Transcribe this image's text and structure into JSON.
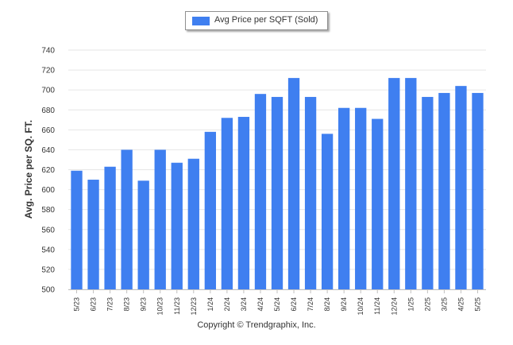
{
  "colors": {
    "bar": "#3f7ff0",
    "grid": "#e6e6e6",
    "axis": "#c0c0c0",
    "text": "#333333"
  },
  "copyright": "Copyright © Trendgraphix, Inc.",
  "chart_data": {
    "type": "bar",
    "title": "",
    "xlabel": "",
    "ylabel": "Avg. Price per SQ. FT.",
    "ylim": [
      500,
      740
    ],
    "yticks": [
      500,
      520,
      540,
      560,
      580,
      600,
      620,
      640,
      660,
      680,
      700,
      720,
      740
    ],
    "legend_position": "top-center",
    "grid": true,
    "categories": [
      "5/23",
      "6/23",
      "7/23",
      "8/23",
      "9/23",
      "10/23",
      "11/23",
      "12/23",
      "1/24",
      "2/24",
      "3/24",
      "4/24",
      "5/24",
      "6/24",
      "7/24",
      "8/24",
      "9/24",
      "10/24",
      "11/24",
      "12/24",
      "1/25",
      "2/25",
      "3/25",
      "4/25",
      "5/25"
    ],
    "series": [
      {
        "name": "Avg Price per SQFT (Sold)",
        "values": [
          619,
          610,
          623,
          640,
          609,
          640,
          627,
          631,
          658,
          672,
          673,
          696,
          693,
          712,
          693,
          656,
          682,
          682,
          671,
          712,
          712,
          693,
          697,
          704,
          697
        ]
      }
    ]
  }
}
